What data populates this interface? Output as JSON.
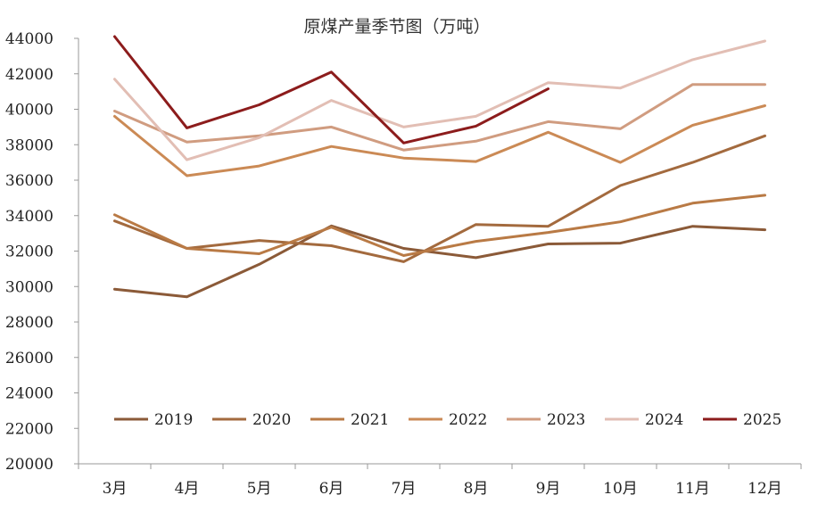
{
  "chart_data": {
    "type": "line",
    "title": "原煤产量季节图（万吨）",
    "xlabel": "",
    "ylabel": "",
    "categories": [
      "3月",
      "4月",
      "5月",
      "6月",
      "7月",
      "8月",
      "9月",
      "10月",
      "11月",
      "12月"
    ],
    "ylim": [
      20000,
      44000
    ],
    "yticks": [
      20000,
      22000,
      24000,
      26000,
      28000,
      30000,
      32000,
      34000,
      36000,
      38000,
      40000,
      42000,
      44000
    ],
    "grid": false,
    "legend_position": "bottom-inside",
    "series": [
      {
        "name": "2019",
        "color": "#8B5A38",
        "values": [
          29850,
          29420,
          31250,
          33420,
          32150,
          31630,
          32400,
          32450,
          33400,
          33200
        ]
      },
      {
        "name": "2020",
        "color": "#A36A3E",
        "values": [
          33700,
          32150,
          32600,
          32300,
          31400,
          33500,
          33400,
          35700,
          37000,
          38500
        ]
      },
      {
        "name": "2021",
        "color": "#B97A45",
        "values": [
          34050,
          32150,
          31850,
          33350,
          31750,
          32550,
          33050,
          33650,
          34700,
          35150
        ]
      },
      {
        "name": "2022",
        "color": "#CB8A55",
        "values": [
          39600,
          36250,
          36800,
          37900,
          37250,
          37050,
          38700,
          37000,
          39100,
          40200
        ]
      },
      {
        "name": "2023",
        "color": "#D09C80",
        "values": [
          39900,
          38150,
          38500,
          39000,
          37700,
          38200,
          39300,
          38900,
          41400,
          41400
        ]
      },
      {
        "name": "2024",
        "color": "#E2BEB4",
        "values": [
          41700,
          37150,
          38400,
          40500,
          39000,
          39600,
          41500,
          41200,
          42800,
          43850
        ]
      },
      {
        "name": "2025",
        "color": "#8C1C1C",
        "values": [
          44100,
          38950,
          40250,
          42100,
          38100,
          39050,
          41150,
          null,
          null,
          null
        ]
      }
    ]
  }
}
